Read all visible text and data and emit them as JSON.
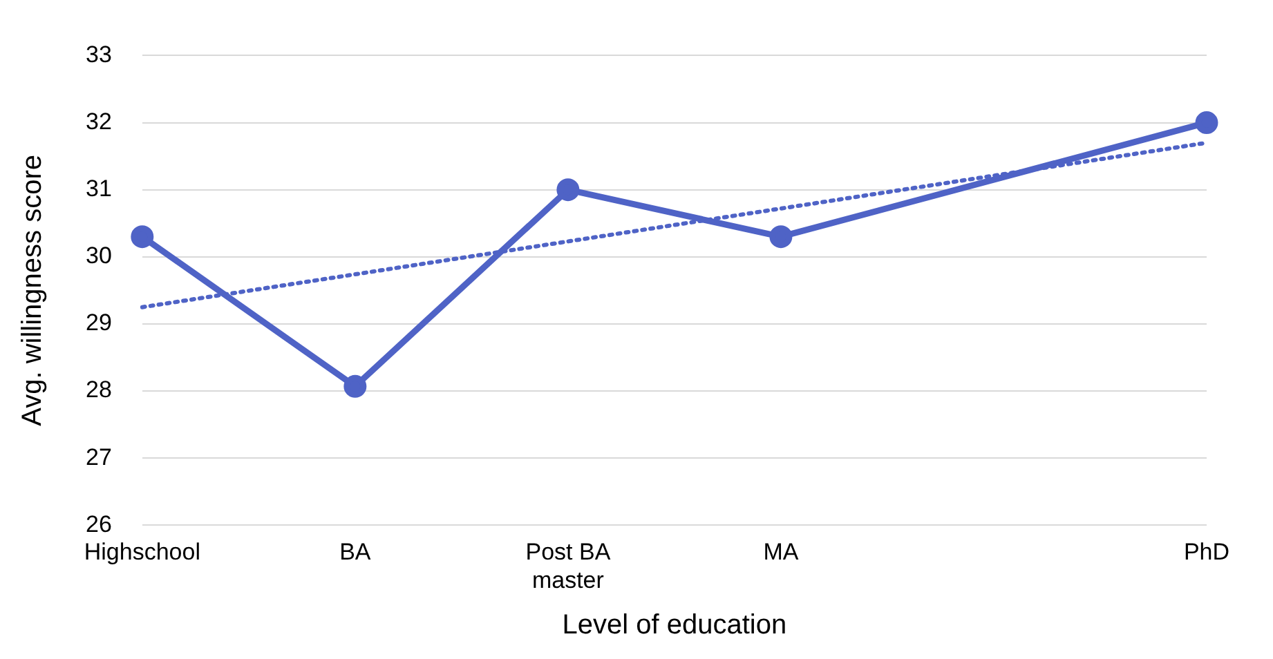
{
  "chart_data": {
    "type": "line",
    "xlabel": "Level of education",
    "ylabel": "Avg. willingness score",
    "categories": [
      "Highschool",
      "BA",
      "Post BA master",
      "MA",
      null,
      "PhD"
    ],
    "series": [
      {
        "color": "#4f63c6",
        "values": [
          30.3,
          28.07,
          31,
          30.3,
          null,
          32
        ],
        "marker": "circle",
        "line_style": "solid"
      },
      {
        "color": "#4f63c6",
        "values": [
          29.25,
          null,
          null,
          null,
          null,
          31.7
        ],
        "marker": "none",
        "line_style": "dotted"
      }
    ],
    "ylim": [
      26,
      33
    ],
    "yticks": [
      26,
      27,
      28,
      29,
      30,
      31,
      32,
      33
    ],
    "grid": "y",
    "legend": false
  }
}
